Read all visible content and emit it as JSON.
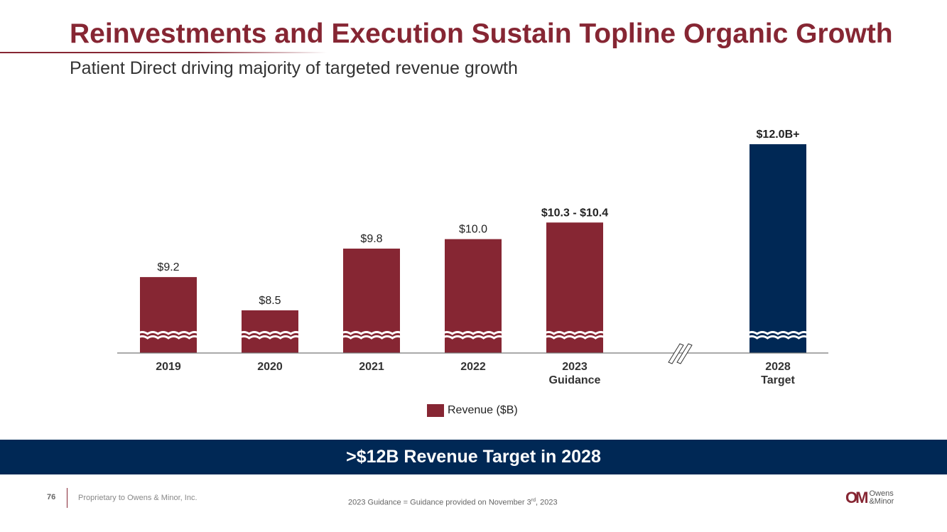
{
  "header": {
    "title": "Reinvestments and Execution Sustain Topline Organic Growth",
    "subtitle": "Patient Direct driving majority of targeted revenue growth"
  },
  "chart_data": {
    "type": "bar",
    "categories": [
      "2019",
      "2020",
      "2021",
      "2022",
      "2023 Guidance",
      "2028 Target"
    ],
    "category_lines": [
      [
        "2019"
      ],
      [
        "2020"
      ],
      [
        "2021"
      ],
      [
        "2022"
      ],
      [
        "2023",
        "Guidance"
      ],
      [
        "2028",
        "Target"
      ]
    ],
    "values": [
      9.2,
      8.5,
      9.8,
      10.0,
      10.35,
      12.0
    ],
    "data_labels": [
      "$9.2",
      "$8.5",
      "$9.8",
      "$10.0",
      "$10.3 - $10.4",
      "$12.0B+"
    ],
    "bold_labels": [
      false,
      false,
      false,
      false,
      true,
      true
    ],
    "colors": [
      "#862633",
      "#862633",
      "#862633",
      "#862633",
      "#862633",
      "#002855"
    ],
    "axis_break": true,
    "ylim": [
      7.6,
      12.3
    ],
    "legend": {
      "label": "Revenue ($B)",
      "color": "#862633",
      "placement": "bottom"
    },
    "series": [
      {
        "name": "Revenue ($B)",
        "values": [
          9.2,
          8.5,
          9.8,
          10.0,
          10.35,
          12.0
        ]
      }
    ]
  },
  "banner": {
    "text": ">$12B Revenue Target in 2028"
  },
  "footer": {
    "page": "76",
    "proprietary": "Proprietary to Owens & Minor, Inc.",
    "note": "2023 Guidance = Guidance provided on November 3rd, 2023",
    "logo_mark": "OM",
    "logo_text1": "Owens",
    "logo_text2": "&Minor"
  }
}
